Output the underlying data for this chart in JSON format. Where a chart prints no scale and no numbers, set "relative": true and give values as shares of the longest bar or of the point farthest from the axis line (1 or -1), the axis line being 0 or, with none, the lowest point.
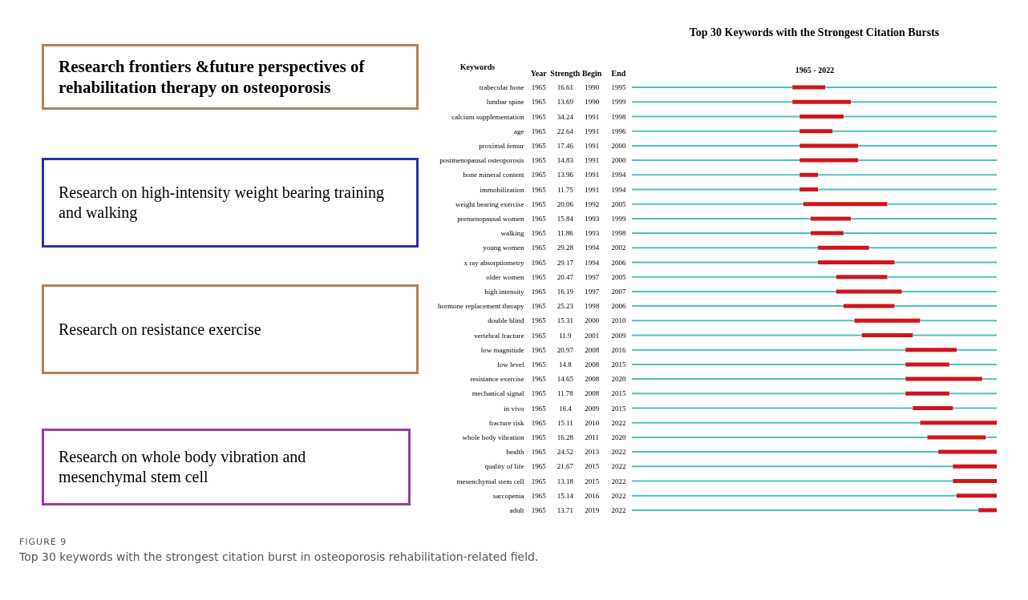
{
  "chart_data": [
    {
      "type": "other",
      "annotations": [
        "Research frontiers &future perspectives of rehabilitation therapy on osteoporosis",
        "Research on high-intensity weight bearing training and walking",
        "Research on resistance exercise",
        "Research on whole body vibration and mesenchymal stem cell",
        "FIGURE 9",
        "Top 30 keywords with the strongest citation burst in osteoporosis rehabilitation-related field."
      ]
    },
    {
      "type": "heatmap",
      "ylabel": "Keywords",
      "categories": [
        "Year",
        "Strength",
        "Begin",
        "End"
      ],
      "y_categories": [
        "trabecular bone",
        "lumbar spine",
        "calcium supplementation",
        "age",
        "proximal femur",
        "postmenopausal osteoporosis",
        "bone mineral content",
        "immobilization",
        "weight bearing exercise",
        "premenopausal women",
        "walking",
        "young women",
        "x ray absorptiometry",
        "older women",
        "high intensity",
        "hormone replacement therapy",
        "double blind",
        "vertebral fracture",
        "low magnitude",
        "low level",
        "resistance exercise",
        "mechanical signal",
        "in vivo",
        "fracture risk",
        "whole body vibration",
        "health",
        "quality of life",
        "mesenchymal stem cell",
        "sarcopenia",
        "adult"
      ],
      "cells": [
        [
          1965,
          16.61,
          1990,
          1995
        ],
        [
          1965,
          13.69,
          1990,
          1999
        ],
        [
          1965,
          34.24,
          1991,
          1998
        ],
        [
          1965,
          22.64,
          1991,
          1996
        ],
        [
          1965,
          17.46,
          1991,
          2000
        ],
        [
          1965,
          14.83,
          1991,
          2000
        ],
        [
          1965,
          13.96,
          1991,
          1994
        ],
        [
          1965,
          11.75,
          1991,
          1994
        ],
        [
          1965,
          20.06,
          1992,
          2005
        ],
        [
          1965,
          15.84,
          1993,
          1999
        ],
        [
          1965,
          11.86,
          1993,
          1998
        ],
        [
          1965,
          29.28,
          1994,
          2002
        ],
        [
          1965,
          29.17,
          1994,
          2006
        ],
        [
          1965,
          20.47,
          1997,
          2005
        ],
        [
          1965,
          16.19,
          1997,
          2007
        ],
        [
          1965,
          25.23,
          1998,
          2006
        ],
        [
          1965,
          15.31,
          2000,
          2010
        ],
        [
          1965,
          11.9,
          2001,
          2009
        ],
        [
          1965,
          20.97,
          2008,
          2016
        ],
        [
          1965,
          14.8,
          2008,
          2015
        ],
        [
          1965,
          14.65,
          2008,
          2020
        ],
        [
          1965,
          11.78,
          2008,
          2015
        ],
        [
          1965,
          16.4,
          2009,
          2015
        ],
        [
          1965,
          15.11,
          2010,
          2022
        ],
        [
          1965,
          16.28,
          2011,
          2020
        ],
        [
          1965,
          24.52,
          2013,
          2022
        ],
        [
          1965,
          21.67,
          2015,
          2022
        ],
        [
          1965,
          13.18,
          2015,
          2022
        ],
        [
          1965,
          15.14,
          2016,
          2022
        ],
        [
          1965,
          13.71,
          2019,
          2022
        ]
      ],
      "data_labels": true
    },
    {
      "type": "bar",
      "orientation": "horizontal",
      "stacked": true,
      "relative": true,
      "title": "Top 30 Keywords with the Strongest Citation Bursts",
      "xlabel": "1965 - 2022",
      "categories": [
        null,
        null,
        null,
        null,
        null,
        null,
        null,
        null,
        null,
        null,
        null,
        null,
        null,
        null,
        null,
        null,
        null,
        null,
        null,
        null,
        null,
        null,
        null,
        null,
        null,
        null,
        null,
        null,
        null,
        null
      ],
      "series": [
        {
          "color": "#4fc1bd",
          "values": [
            0.44,
            0.44,
            0.46,
            0.46,
            0.46,
            0.46,
            0.46,
            0.46,
            0.47,
            0.49,
            0.49,
            0.51,
            0.51,
            0.56,
            0.56,
            0.58,
            0.61,
            0.63,
            0.75,
            0.75,
            0.75,
            0.75,
            0.77,
            0.79,
            0.81,
            0.84,
            0.88,
            0.88,
            0.89,
            0.95
          ]
        },
        {
          "color": "#d0151b",
          "values": [
            0.09,
            0.16,
            0.12,
            0.09,
            0.16,
            0.16,
            0.05,
            0.05,
            0.23,
            0.11,
            0.09,
            0.14,
            0.21,
            0.14,
            0.18,
            0.14,
            0.18,
            0.14,
            0.14,
            0.12,
            0.21,
            0.12,
            0.11,
            0.21,
            0.16,
            0.16,
            0.12,
            0.12,
            0.11,
            0.05
          ]
        },
        {
          "color": "#4fc1bd",
          "values": [
            0.47,
            0.4,
            0.42,
            0.45,
            0.38,
            0.38,
            0.49,
            0.49,
            0.3,
            0.4,
            0.42,
            0.35,
            0.28,
            0.3,
            0.26,
            0.28,
            0.21,
            0.23,
            0.11,
            0.13,
            0.04,
            0.13,
            0.12,
            0,
            0.03,
            0,
            0,
            0,
            0,
            0
          ]
        }
      ]
    }
  ]
}
